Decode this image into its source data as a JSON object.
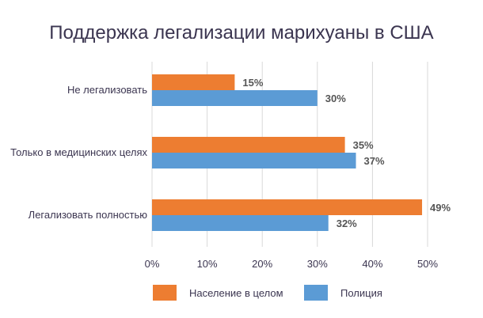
{
  "chart_data": {
    "type": "bar",
    "orientation": "horizontal",
    "title": "Поддержка легализации марихуаны в США",
    "categories": [
      "Не легализовать",
      "Только в медицинских целях",
      "Легализовать полностью"
    ],
    "series": [
      {
        "name": "Население в целом",
        "color": "#ed7d31",
        "values": [
          15,
          35,
          49
        ],
        "labels": [
          "15%",
          "35%",
          "49%"
        ]
      },
      {
        "name": "Полиция",
        "color": "#5b9bd5",
        "values": [
          30,
          37,
          32
        ],
        "labels": [
          "30%",
          "37%",
          "32%"
        ]
      }
    ],
    "xlim": [
      0,
      50
    ],
    "xticks": [
      "0%",
      "10%",
      "20%",
      "30%",
      "40%",
      "50%"
    ],
    "grid": true,
    "legend": "bottom"
  }
}
